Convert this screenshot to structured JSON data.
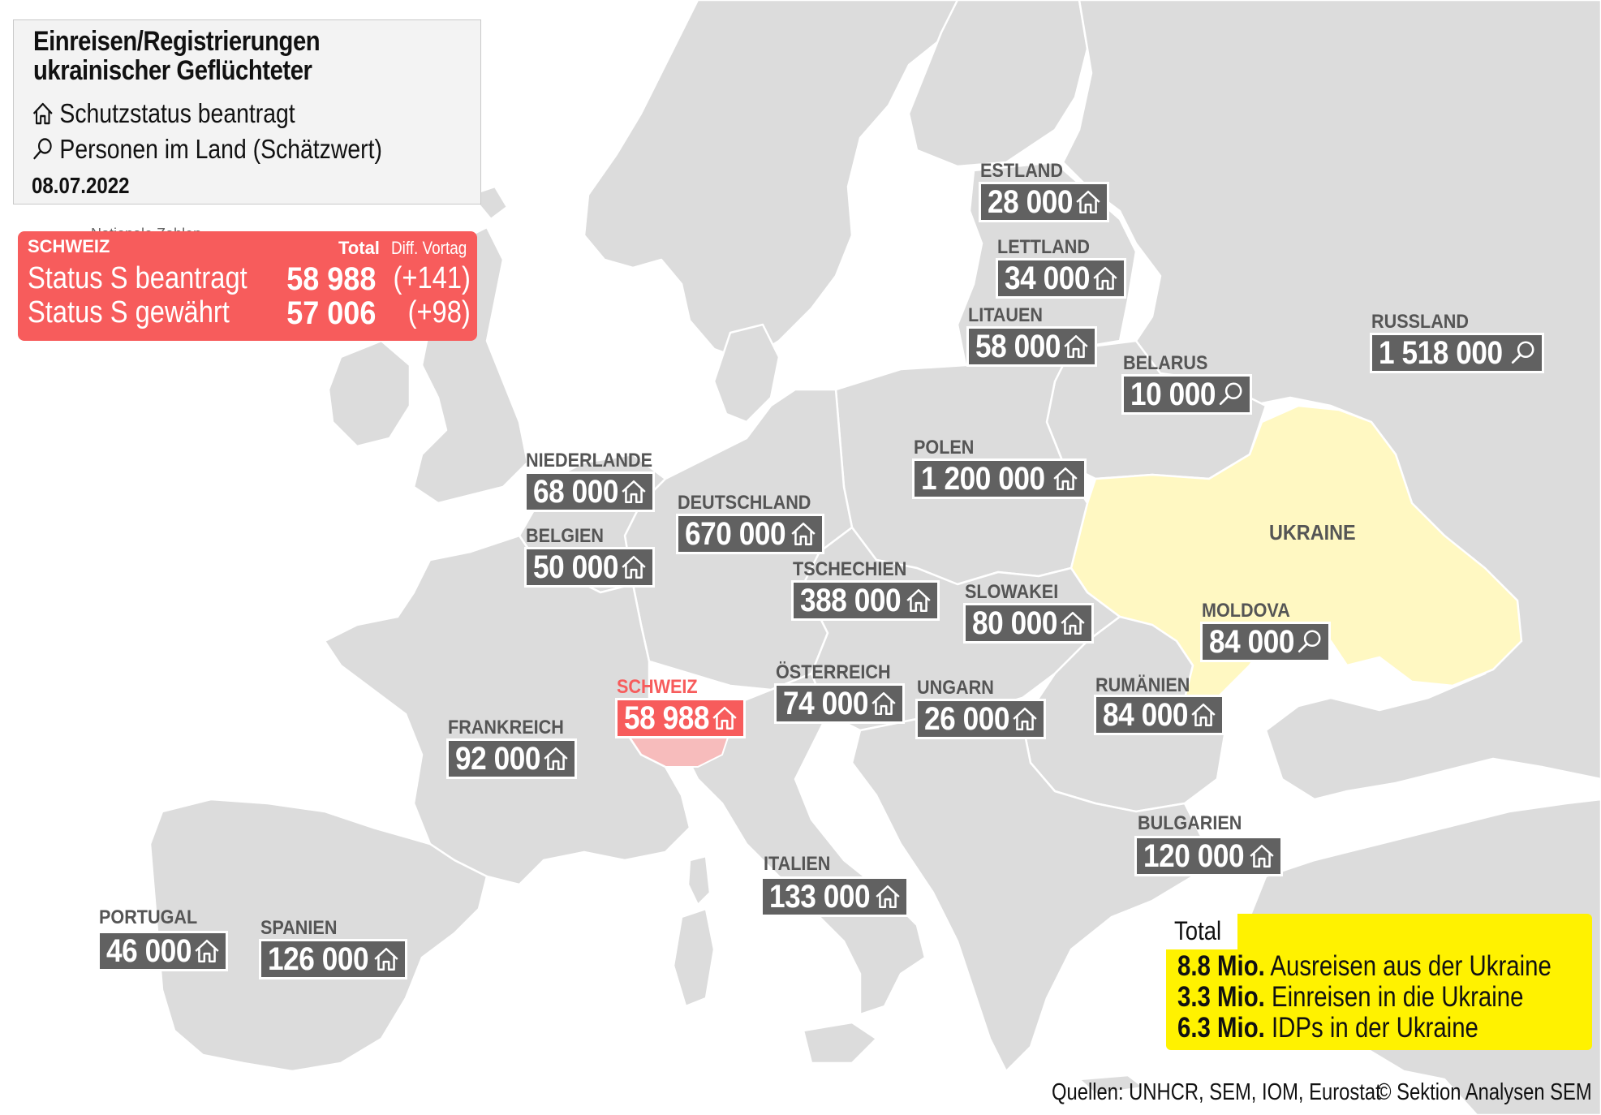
{
  "legend": {
    "title_line1": "Einreisen/Registrierungen",
    "title_line2": "ukrainischer Geflüchteter",
    "house_label": "Schutzstatus beantragt",
    "search_label": "Personen im Land (Schätzwert)",
    "date": "08.07.2022",
    "stub_text": "Nationale Zahlen"
  },
  "switzerland_box": {
    "country": "SCHWEIZ",
    "col_total": "Total",
    "col_diff": "Diff. Vortag",
    "rows": [
      {
        "label": "Status S beantragt",
        "total": "58 988",
        "diff": "(+141)"
      },
      {
        "label": "Status S gewährt",
        "total": "57 006",
        "diff": "(+98)"
      }
    ]
  },
  "countries": [
    {
      "name": "ESTLAND",
      "value": "28 000",
      "icon": "house-icon"
    },
    {
      "name": "LETTLAND",
      "value": "34 000",
      "icon": "house-icon"
    },
    {
      "name": "LITAUEN",
      "value": "58 000",
      "icon": "house-icon"
    },
    {
      "name": "RUSSLAND",
      "value": "1 518 000",
      "icon": "search-icon"
    },
    {
      "name": "BELARUS",
      "value": "10 000",
      "icon": "search-icon"
    },
    {
      "name": "POLEN",
      "value": "1 200 000",
      "icon": "house-icon"
    },
    {
      "name": "NIEDERLANDE",
      "value": "68 000",
      "icon": "house-icon"
    },
    {
      "name": "DEUTSCHLAND",
      "value": "670 000",
      "icon": "house-icon"
    },
    {
      "name": "BELGIEN",
      "value": "50 000",
      "icon": "house-icon"
    },
    {
      "name": "TSCHECHIEN",
      "value": "388 000",
      "icon": "house-icon"
    },
    {
      "name": "SLOWAKEI",
      "value": "80 000",
      "icon": "house-icon"
    },
    {
      "name": "MOLDOVA",
      "value": "84 000",
      "icon": "search-icon"
    },
    {
      "name": "SCHWEIZ",
      "value": "58 988",
      "icon": "house-icon"
    },
    {
      "name": "ÖSTERREICH",
      "value": "74 000",
      "icon": "house-icon"
    },
    {
      "name": "UNGARN",
      "value": "26 000",
      "icon": "house-icon"
    },
    {
      "name": "RUMÄNIEN",
      "value": "84 000",
      "icon": "house-icon"
    },
    {
      "name": "FRANKREICH",
      "value": "92 000",
      "icon": "house-icon"
    },
    {
      "name": "BULGARIEN",
      "value": "120 000",
      "icon": "house-icon"
    },
    {
      "name": "ITALIEN",
      "value": "133 000",
      "icon": "house-icon"
    },
    {
      "name": "PORTUGAL",
      "value": "46 000",
      "icon": "house-icon"
    },
    {
      "name": "SPANIEN",
      "value": "126 000",
      "icon": "house-icon"
    }
  ],
  "ukraine_label": "UKRAINE",
  "totals": {
    "title": "Total",
    "lines": [
      {
        "value": "8.8 Mio.",
        "text": "Ausreisen aus der Ukraine"
      },
      {
        "value": "3.3 Mio.",
        "text": "Einreisen in die Ukraine"
      },
      {
        "value": "6.3 Mio.",
        "text": "IDPs in der Ukraine"
      }
    ]
  },
  "footer": {
    "sources": "Quellen: UNHCR, SEM, IOM, Eurostat",
    "copyright": "© Sektion Analysen SEM"
  },
  "colors": {
    "land": "#dcdcdc",
    "ukraine": "#fff8c2",
    "label_box": "#616161",
    "switzerland": "#f75c5c",
    "totals_box": "#fff200"
  }
}
